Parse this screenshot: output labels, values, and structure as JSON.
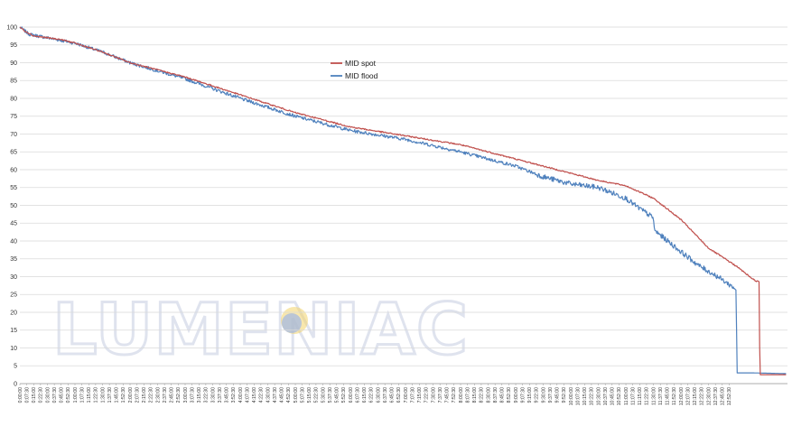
{
  "watermark": {
    "text": "LUMENIAC"
  },
  "chart_data": {
    "type": "line",
    "title": "",
    "xlabel": "",
    "ylabel": "",
    "ylim": [
      0,
      100
    ],
    "yticks": [
      0,
      5,
      10,
      15,
      20,
      25,
      30,
      35,
      40,
      45,
      50,
      55,
      60,
      65,
      70,
      75,
      80,
      85,
      90,
      95,
      100
    ],
    "x_unit": "minutes",
    "x_tick_step_min": 7.5,
    "x_range_min": [
      0,
      772.5
    ],
    "grid": {
      "horizontal": true,
      "vertical": false
    },
    "legend_position": "top-center",
    "series": [
      {
        "name": "MID spot",
        "color": "#c0504d",
        "points": [
          [
            0,
            100
          ],
          [
            5,
            99
          ],
          [
            15,
            97.5
          ],
          [
            45,
            96.5
          ],
          [
            60,
            95.5
          ],
          [
            90,
            93
          ],
          [
            120,
            90
          ],
          [
            180,
            86
          ],
          [
            240,
            81
          ],
          [
            300,
            76
          ],
          [
            360,
            72
          ],
          [
            420,
            69.5
          ],
          [
            480,
            67
          ],
          [
            540,
            63
          ],
          [
            600,
            59
          ],
          [
            630,
            57
          ],
          [
            660,
            55.5
          ],
          [
            690,
            52
          ],
          [
            720,
            46
          ],
          [
            750,
            38
          ],
          [
            780,
            33
          ],
          [
            790,
            31
          ],
          [
            800,
            29
          ],
          [
            805,
            28.5
          ],
          [
            806,
            2.5
          ],
          [
            825,
            2.5
          ],
          [
            835,
            2.5
          ]
        ]
      },
      {
        "name": "MID flood",
        "color": "#4f81bd",
        "points": [
          [
            0,
            100
          ],
          [
            10,
            98
          ],
          [
            30,
            97
          ],
          [
            60,
            95.5
          ],
          [
            90,
            93
          ],
          [
            120,
            90
          ],
          [
            180,
            85.5
          ],
          [
            240,
            80
          ],
          [
            300,
            75
          ],
          [
            360,
            71
          ],
          [
            420,
            68.5
          ],
          [
            480,
            65
          ],
          [
            540,
            61
          ],
          [
            570,
            58
          ],
          [
            600,
            56
          ],
          [
            630,
            55
          ],
          [
            660,
            52
          ],
          [
            670,
            50
          ],
          [
            690,
            46.5
          ],
          [
            691,
            43
          ],
          [
            720,
            37
          ],
          [
            740,
            33
          ],
          [
            760,
            30
          ],
          [
            780,
            26.5
          ],
          [
            781,
            3
          ],
          [
            800,
            3
          ],
          [
            835,
            2.8
          ]
        ]
      }
    ]
  }
}
